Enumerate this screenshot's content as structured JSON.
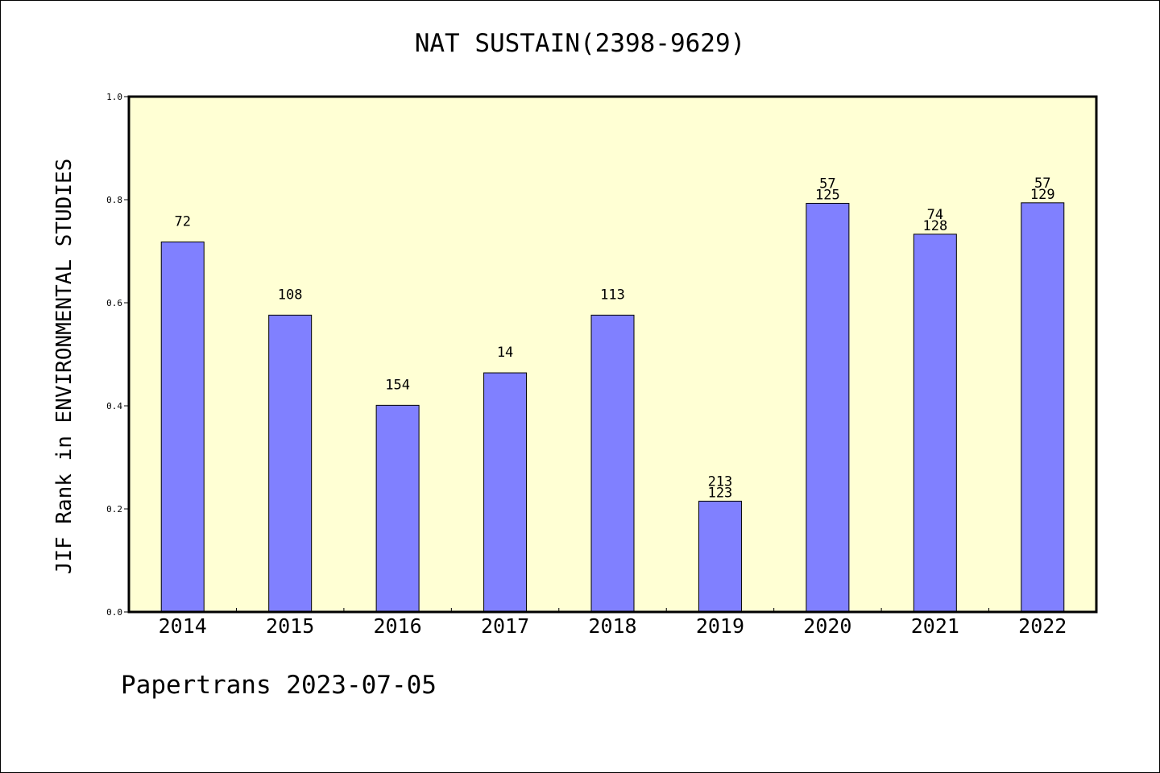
{
  "chart_data": {
    "type": "bar",
    "title": "NAT SUSTAIN(2398-9629)",
    "xlabel": "",
    "ylabel": "JIF Rank in ENVIRONMENTAL STUDIES",
    "categories": [
      "2014",
      "2015",
      "2016",
      "2017",
      "2018",
      "2019",
      "2020",
      "2021",
      "2022"
    ],
    "values": [
      0.718,
      0.576,
      0.401,
      0.464,
      0.576,
      0.215,
      0.793,
      0.733,
      0.794
    ],
    "data_labels": [
      [
        "72"
      ],
      [
        "108"
      ],
      [
        "154"
      ],
      [
        "14"
      ],
      [
        "113"
      ],
      [
        "213",
        "123"
      ],
      [
        "57",
        "125"
      ],
      [
        "74",
        "128"
      ],
      [
        "57",
        "129"
      ]
    ],
    "ylim": [
      0,
      1.0
    ],
    "yticks": [
      "0.0",
      "0.2",
      "0.4",
      "0.6",
      "0.8",
      "1.0"
    ],
    "grid": false,
    "colors": {
      "plot_background": "#ffffd4",
      "bar_fill": "#8080ff",
      "bar_stroke": "#000000"
    }
  },
  "footer": {
    "text": "Papertrans 2023-07-05"
  }
}
